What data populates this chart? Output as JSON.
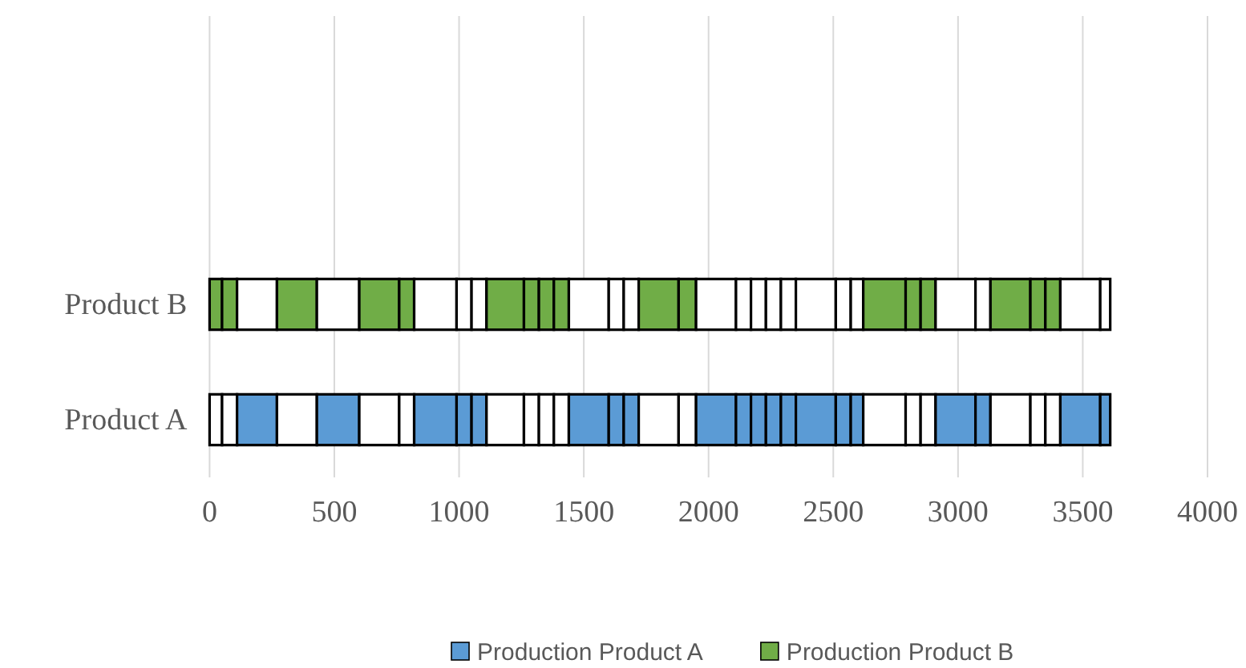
{
  "chart_data": {
    "type": "bar",
    "orientation": "horizontal",
    "stacked": true,
    "categories": [
      null,
      null,
      "Product B",
      "Product A"
    ],
    "xlim": [
      0,
      4000
    ],
    "xticks": [
      0,
      500,
      1000,
      1500,
      2000,
      2500,
      3000,
      3500,
      4000
    ],
    "grid": "x",
    "legend": "bottom",
    "series": [
      {
        "name": "Production Product B",
        "color": "#70ad47",
        "colors": [
          null,
          null,
          "#70ad47",
          "#ffffff"
        ],
        "values": [
          null,
          null,
          50,
          50
        ]
      },
      {
        "colors": [
          null,
          null,
          "#70ad47",
          "#ffffff"
        ],
        "values": [
          null,
          null,
          60,
          60
        ]
      },
      {
        "name": "Production Product A",
        "color": "#5b9bd5",
        "colors": [
          null,
          null,
          "#ffffff",
          "#5b9bd5"
        ],
        "values": [
          null,
          null,
          160,
          160
        ]
      },
      {
        "colors": [
          null,
          null,
          "#70ad47",
          "#ffffff"
        ],
        "values": [
          null,
          null,
          160,
          160
        ]
      },
      {
        "colors": [
          null,
          null,
          "#ffffff",
          "#5b9bd5"
        ],
        "values": [
          null,
          null,
          170,
          170
        ]
      },
      {
        "colors": [
          null,
          null,
          "#70ad47",
          "#ffffff"
        ],
        "values": [
          null,
          null,
          160,
          160
        ]
      },
      {
        "colors": [
          null,
          null,
          "#70ad47",
          "#ffffff"
        ],
        "values": [
          null,
          null,
          60,
          60
        ]
      },
      {
        "colors": [
          null,
          null,
          "#ffffff",
          "#5b9bd5"
        ],
        "values": [
          null,
          null,
          170,
          170
        ]
      },
      {
        "colors": [
          null,
          null,
          "#ffffff",
          "#5b9bd5"
        ],
        "values": [
          null,
          null,
          60,
          60
        ]
      },
      {
        "colors": [
          null,
          null,
          "#ffffff",
          "#5b9bd5"
        ],
        "values": [
          null,
          null,
          60,
          60
        ]
      },
      {
        "colors": [
          null,
          null,
          "#70ad47",
          "#ffffff"
        ],
        "values": [
          null,
          null,
          150,
          150
        ]
      },
      {
        "colors": [
          null,
          null,
          "#70ad47",
          "#ffffff"
        ],
        "values": [
          null,
          null,
          60,
          60
        ]
      },
      {
        "colors": [
          null,
          null,
          "#70ad47",
          "#ffffff"
        ],
        "values": [
          null,
          null,
          60,
          60
        ]
      },
      {
        "colors": [
          null,
          null,
          "#70ad47",
          "#ffffff"
        ],
        "values": [
          null,
          null,
          60,
          60
        ]
      },
      {
        "colors": [
          null,
          null,
          "#ffffff",
          "#5b9bd5"
        ],
        "values": [
          null,
          null,
          160,
          160
        ]
      },
      {
        "colors": [
          null,
          null,
          "#ffffff",
          "#5b9bd5"
        ],
        "values": [
          null,
          null,
          60,
          60
        ]
      },
      {
        "colors": [
          null,
          null,
          "#ffffff",
          "#5b9bd5"
        ],
        "values": [
          null,
          null,
          60,
          60
        ]
      },
      {
        "colors": [
          null,
          null,
          "#70ad47",
          "#ffffff"
        ],
        "values": [
          null,
          null,
          160,
          160
        ]
      },
      {
        "colors": [
          null,
          null,
          "#70ad47",
          "#ffffff"
        ],
        "values": [
          null,
          null,
          70,
          70
        ]
      },
      {
        "colors": [
          null,
          null,
          "#ffffff",
          "#5b9bd5"
        ],
        "values": [
          null,
          null,
          160,
          160
        ]
      },
      {
        "colors": [
          null,
          null,
          "#ffffff",
          "#5b9bd5"
        ],
        "values": [
          null,
          null,
          60,
          60
        ]
      },
      {
        "colors": [
          null,
          null,
          "#ffffff",
          "#5b9bd5"
        ],
        "values": [
          null,
          null,
          60,
          60
        ]
      },
      {
        "colors": [
          null,
          null,
          "#ffffff",
          "#5b9bd5"
        ],
        "values": [
          null,
          null,
          60,
          60
        ]
      },
      {
        "colors": [
          null,
          null,
          "#ffffff",
          "#5b9bd5"
        ],
        "values": [
          null,
          null,
          60,
          60
        ]
      },
      {
        "colors": [
          null,
          null,
          "#ffffff",
          "#5b9bd5"
        ],
        "values": [
          null,
          null,
          160,
          160
        ]
      },
      {
        "colors": [
          null,
          null,
          "#ffffff",
          "#5b9bd5"
        ],
        "values": [
          null,
          null,
          60,
          60
        ]
      },
      {
        "colors": [
          null,
          null,
          "#ffffff",
          "#5b9bd5"
        ],
        "values": [
          null,
          null,
          50,
          50
        ]
      },
      {
        "colors": [
          null,
          null,
          "#70ad47",
          "#ffffff"
        ],
        "values": [
          null,
          null,
          170,
          170
        ]
      },
      {
        "colors": [
          null,
          null,
          "#70ad47",
          "#ffffff"
        ],
        "values": [
          null,
          null,
          60,
          60
        ]
      },
      {
        "colors": [
          null,
          null,
          "#70ad47",
          "#ffffff"
        ],
        "values": [
          null,
          null,
          60,
          60
        ]
      },
      {
        "colors": [
          null,
          null,
          "#ffffff",
          "#5b9bd5"
        ],
        "values": [
          null,
          null,
          160,
          160
        ]
      },
      {
        "colors": [
          null,
          null,
          "#ffffff",
          "#5b9bd5"
        ],
        "values": [
          null,
          null,
          60,
          60
        ]
      },
      {
        "colors": [
          null,
          null,
          "#70ad47",
          "#ffffff"
        ],
        "values": [
          null,
          null,
          160,
          160
        ]
      },
      {
        "colors": [
          null,
          null,
          "#70ad47",
          "#ffffff"
        ],
        "values": [
          null,
          null,
          60,
          60
        ]
      },
      {
        "colors": [
          null,
          null,
          "#70ad47",
          "#ffffff"
        ],
        "values": [
          null,
          null,
          60,
          60
        ]
      },
      {
        "colors": [
          null,
          null,
          "#ffffff",
          "#5b9bd5"
        ],
        "values": [
          null,
          null,
          160,
          160
        ]
      },
      {
        "colors": [
          null,
          null,
          "#ffffff",
          "#5b9bd5"
        ],
        "values": [
          null,
          null,
          40,
          40
        ]
      }
    ]
  }
}
